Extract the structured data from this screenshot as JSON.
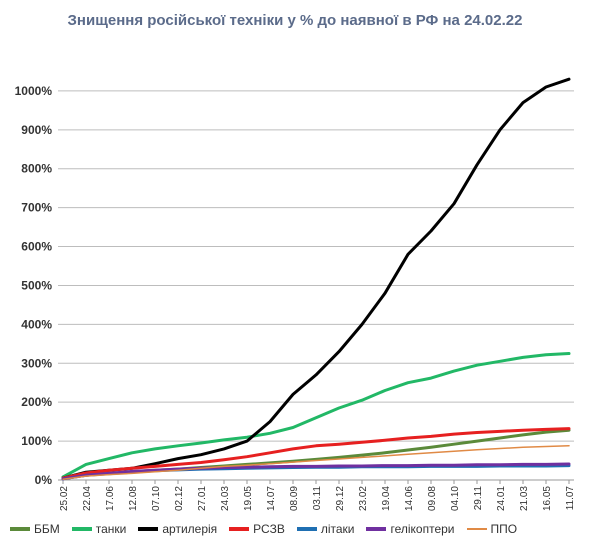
{
  "chart_data": {
    "type": "line",
    "title": "Знищення російської техніки у % до наявної в РФ на 24.02.22",
    "xlabel": "",
    "ylabel": "",
    "ylim": [
      0,
      1100
    ],
    "y_ticks": [
      0,
      100,
      200,
      300,
      400,
      500,
      600,
      700,
      800,
      900,
      1000
    ],
    "y_tick_labels": [
      "0%",
      "100%",
      "200%",
      "300%",
      "400%",
      "500%",
      "600%",
      "700%",
      "800%",
      "900%",
      "1000%"
    ],
    "categories": [
      "25.02",
      "22.04",
      "17.06",
      "12.08",
      "07.10",
      "02.12",
      "27.01",
      "24.03",
      "19.05",
      "14.07",
      "08.09",
      "03.11",
      "29.12",
      "23.02",
      "19.04",
      "14.06",
      "09.08",
      "04.10",
      "29.11",
      "24.01",
      "21.03",
      "16.05",
      "11.07"
    ],
    "grid": true,
    "legend_position": "bottom",
    "series": [
      {
        "name": "ББМ",
        "color": "#5b8a3a",
        "values": [
          5,
          12,
          17,
          21,
          25,
          28,
          32,
          36,
          40,
          44,
          48,
          53,
          58,
          64,
          70,
          77,
          84,
          92,
          100,
          108,
          116,
          123,
          128
        ]
      },
      {
        "name": "танки",
        "color": "#22b866",
        "values": [
          8,
          40,
          55,
          70,
          80,
          88,
          95,
          103,
          110,
          120,
          135,
          160,
          185,
          205,
          230,
          250,
          262,
          280,
          295,
          305,
          315,
          322,
          325
        ]
      },
      {
        "name": "артилерія",
        "color": "#000000",
        "values": [
          5,
          20,
          25,
          30,
          42,
          55,
          65,
          80,
          100,
          150,
          220,
          270,
          330,
          400,
          480,
          580,
          640,
          710,
          810,
          900,
          970,
          1010,
          1030
        ]
      },
      {
        "name": "РСЗВ",
        "color": "#e62020",
        "values": [
          5,
          18,
          25,
          30,
          35,
          40,
          45,
          52,
          60,
          70,
          80,
          88,
          92,
          97,
          102,
          108,
          112,
          118,
          122,
          125,
          128,
          130,
          132
        ]
      },
      {
        "name": "літаки",
        "color": "#1f6fb2",
        "values": [
          3,
          12,
          16,
          20,
          24,
          26,
          28,
          29,
          30,
          31,
          32,
          33,
          33,
          34,
          34,
          34,
          35,
          35,
          35,
          36,
          36,
          36,
          37
        ]
      },
      {
        "name": "гелікоптери",
        "color": "#7030a0",
        "values": [
          3,
          12,
          17,
          22,
          25,
          28,
          30,
          32,
          33,
          34,
          35,
          35,
          36,
          36,
          37,
          37,
          38,
          38,
          39,
          39,
          40,
          40,
          41
        ]
      },
      {
        "name": "ППО",
        "color": "#e08a45",
        "values": [
          2,
          10,
          14,
          17,
          21,
          25,
          30,
          35,
          38,
          42,
          46,
          50,
          54,
          58,
          62,
          66,
          70,
          74,
          78,
          81,
          84,
          86,
          88
        ]
      }
    ]
  }
}
